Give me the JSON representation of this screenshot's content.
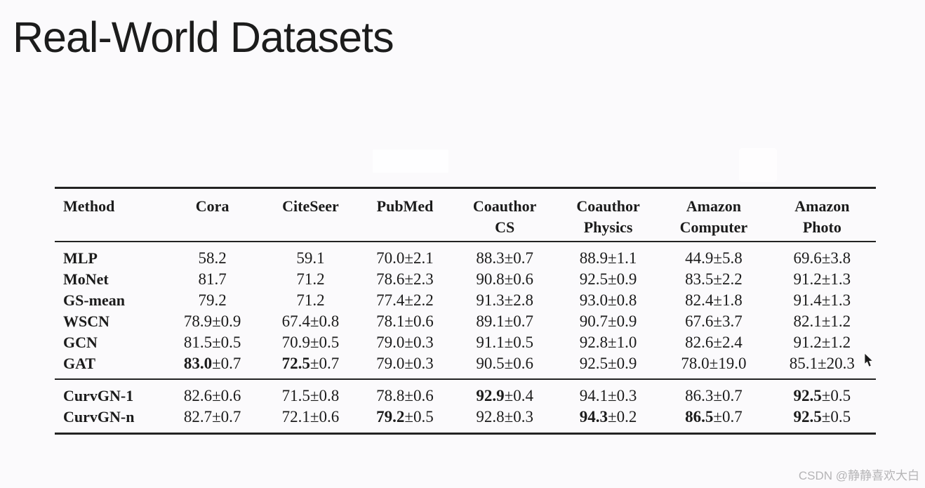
{
  "slide": {
    "title": "Real-World Datasets"
  },
  "watermark": {
    "text": "CSDN @静静喜欢大白"
  },
  "colors": {
    "background": "#fbfafc",
    "text": "#1b1b1b",
    "rule": "#232323",
    "watermark": "#b5b4b6"
  },
  "chart_data": {
    "type": "table",
    "title": "Real-World Datasets",
    "columns": [
      {
        "line1": "Method",
        "line2": ""
      },
      {
        "line1": "Cora",
        "line2": ""
      },
      {
        "line1": "CiteSeer",
        "line2": ""
      },
      {
        "line1": "PubMed",
        "line2": ""
      },
      {
        "line1": "Coauthor",
        "line2": "CS"
      },
      {
        "line1": "Coauthor",
        "line2": "Physics"
      },
      {
        "line1": "Amazon",
        "line2": "Computer"
      },
      {
        "line1": "Amazon",
        "line2": "Photo"
      }
    ],
    "groups": [
      {
        "name": "baselines",
        "rows": [
          {
            "method": "MLP",
            "cells": [
              {
                "v": "58.2",
                "e": "",
                "b": false
              },
              {
                "v": "59.1",
                "e": "",
                "b": false
              },
              {
                "v": "70.0",
                "e": "2.1",
                "b": false
              },
              {
                "v": "88.3",
                "e": "0.7",
                "b": false
              },
              {
                "v": "88.9",
                "e": "1.1",
                "b": false
              },
              {
                "v": "44.9",
                "e": "5.8",
                "b": false
              },
              {
                "v": "69.6",
                "e": "3.8",
                "b": false
              }
            ]
          },
          {
            "method": "MoNet",
            "cells": [
              {
                "v": "81.7",
                "e": "",
                "b": false
              },
              {
                "v": "71.2",
                "e": "",
                "b": false
              },
              {
                "v": "78.6",
                "e": "2.3",
                "b": false
              },
              {
                "v": "90.8",
                "e": "0.6",
                "b": false
              },
              {
                "v": "92.5",
                "e": "0.9",
                "b": false
              },
              {
                "v": "83.5",
                "e": "2.2",
                "b": false
              },
              {
                "v": "91.2",
                "e": "1.3",
                "b": false
              }
            ]
          },
          {
            "method": "GS-mean",
            "cells": [
              {
                "v": "79.2",
                "e": "",
                "b": false
              },
              {
                "v": "71.2",
                "e": "",
                "b": false
              },
              {
                "v": "77.4",
                "e": "2.2",
                "b": false
              },
              {
                "v": "91.3",
                "e": "2.8",
                "b": false
              },
              {
                "v": "93.0",
                "e": "0.8",
                "b": false
              },
              {
                "v": "82.4",
                "e": "1.8",
                "b": false
              },
              {
                "v": "91.4",
                "e": "1.3",
                "b": false
              }
            ]
          },
          {
            "method": "WSCN",
            "cells": [
              {
                "v": "78.9",
                "e": "0.9",
                "b": false
              },
              {
                "v": "67.4",
                "e": "0.8",
                "b": false
              },
              {
                "v": "78.1",
                "e": "0.6",
                "b": false
              },
              {
                "v": "89.1",
                "e": "0.7",
                "b": false
              },
              {
                "v": "90.7",
                "e": "0.9",
                "b": false
              },
              {
                "v": "67.6",
                "e": "3.7",
                "b": false
              },
              {
                "v": "82.1",
                "e": "1.2",
                "b": false
              }
            ]
          },
          {
            "method": "GCN",
            "cells": [
              {
                "v": "81.5",
                "e": "0.5",
                "b": false
              },
              {
                "v": "70.9",
                "e": "0.5",
                "b": false
              },
              {
                "v": "79.0",
                "e": "0.3",
                "b": false
              },
              {
                "v": "91.1",
                "e": "0.5",
                "b": false
              },
              {
                "v": "92.8",
                "e": "1.0",
                "b": false
              },
              {
                "v": "82.6",
                "e": "2.4",
                "b": false
              },
              {
                "v": "91.2",
                "e": "1.2",
                "b": false
              }
            ]
          },
          {
            "method": "GAT",
            "cells": [
              {
                "v": "83.0",
                "e": "0.7",
                "b": true
              },
              {
                "v": "72.5",
                "e": "0.7",
                "b": true
              },
              {
                "v": "79.0",
                "e": "0.3",
                "b": false
              },
              {
                "v": "90.5",
                "e": "0.6",
                "b": false
              },
              {
                "v": "92.5",
                "e": "0.9",
                "b": false
              },
              {
                "v": "78.0",
                "e": "19.0",
                "b": false
              },
              {
                "v": "85.1",
                "e": "20.3",
                "b": false
              }
            ]
          }
        ]
      },
      {
        "name": "curvgn",
        "rows": [
          {
            "method": "CurvGN-1",
            "cells": [
              {
                "v": "82.6",
                "e": "0.6",
                "b": false
              },
              {
                "v": "71.5",
                "e": "0.8",
                "b": false
              },
              {
                "v": "78.8",
                "e": "0.6",
                "b": false
              },
              {
                "v": "92.9",
                "e": "0.4",
                "b": true
              },
              {
                "v": "94.1",
                "e": "0.3",
                "b": false
              },
              {
                "v": "86.3",
                "e": "0.7",
                "b": false
              },
              {
                "v": "92.5",
                "e": "0.5",
                "b": true
              }
            ]
          },
          {
            "method": "CurvGN-n",
            "cells": [
              {
                "v": "82.7",
                "e": "0.7",
                "b": false
              },
              {
                "v": "72.1",
                "e": "0.6",
                "b": false
              },
              {
                "v": "79.2",
                "e": "0.5",
                "b": true
              },
              {
                "v": "92.8",
                "e": "0.3",
                "b": false
              },
              {
                "v": "94.3",
                "e": "0.2",
                "b": true
              },
              {
                "v": "86.5",
                "e": "0.7",
                "b": true
              },
              {
                "v": "92.5",
                "e": "0.5",
                "b": true
              }
            ]
          }
        ]
      }
    ]
  }
}
